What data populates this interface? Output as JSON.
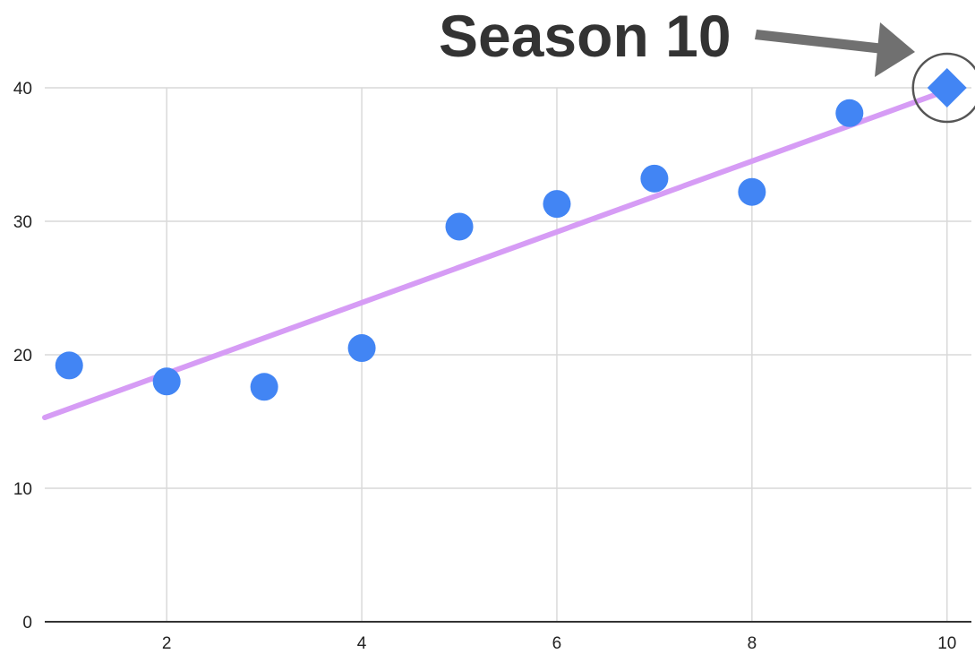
{
  "chart_data": {
    "type": "scatter",
    "title": "",
    "xlabel": "",
    "ylabel": "",
    "xlim": [
      0.75,
      10.25
    ],
    "ylim": [
      0,
      40
    ],
    "x_ticks": [
      2,
      4,
      6,
      8,
      10
    ],
    "y_ticks": [
      0,
      10,
      20,
      30,
      40
    ],
    "grid": true,
    "legend": "none",
    "series": [
      {
        "marker": "circle",
        "color": "#4285f4",
        "points": [
          {
            "x": 1,
            "y": 19.2
          },
          {
            "x": 2,
            "y": 18.0
          },
          {
            "x": 3,
            "y": 17.6
          },
          {
            "x": 4,
            "y": 20.5
          },
          {
            "x": 5,
            "y": 29.6
          },
          {
            "x": 6,
            "y": 31.3
          },
          {
            "x": 7,
            "y": 33.2
          },
          {
            "x": 8,
            "y": 32.2
          },
          {
            "x": 9,
            "y": 38.1
          }
        ]
      },
      {
        "marker": "diamond",
        "color": "#4285f4",
        "points": [
          {
            "x": 10,
            "y": 40.0
          }
        ]
      }
    ],
    "trendline": {
      "color": "#d69cf5",
      "start": {
        "x": 0.75,
        "y": 15.3
      },
      "end": {
        "x": 10,
        "y": 39.8
      }
    },
    "annotation": {
      "text": "Season 10",
      "target": {
        "x": 10,
        "y": 40.0
      },
      "arrow_color": "#707070"
    }
  }
}
